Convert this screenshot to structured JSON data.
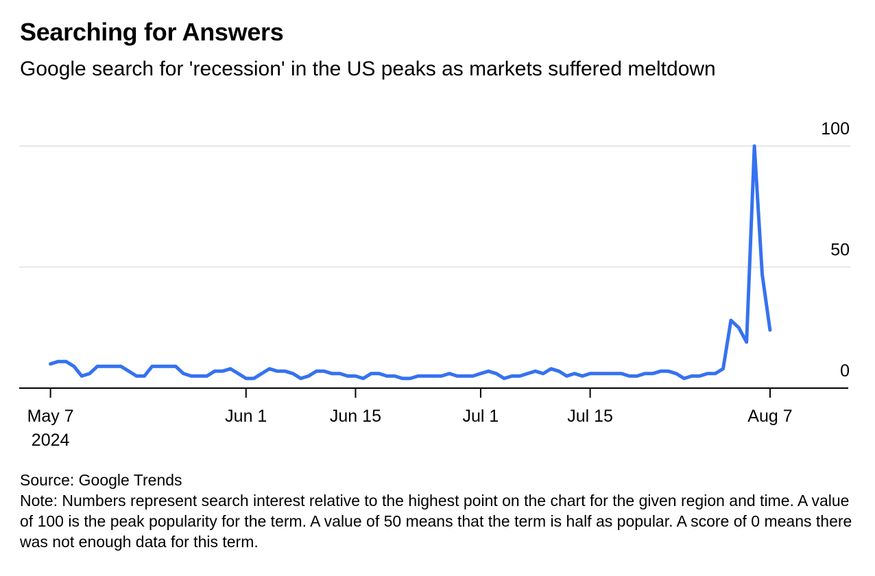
{
  "title": "Searching for Answers",
  "subtitle": "Google search for 'recession' in the US peaks as markets suffered meltdown",
  "source": "Source: Google Trends",
  "note": "Note: Numbers represent search interest relative to the highest point on the chart for the given region and time. A value of 100 is the peak popularity for the term. A value of 50 means that the term is half as popular. A score of 0 means there was not enough data for this term.",
  "colors": {
    "line": "#3572f0",
    "grid": "#e6e6e6",
    "axis": "#000000"
  },
  "chart_data": {
    "type": "line",
    "x_axis": "date",
    "xlim": [
      "2024-05-03",
      "2024-08-17"
    ],
    "ylim": [
      0,
      100
    ],
    "grid": true,
    "y_ticks": [
      {
        "value": 0,
        "label": "0"
      },
      {
        "value": 50,
        "label": "50"
      },
      {
        "value": 100,
        "label": "100"
      }
    ],
    "x_ticks": [
      {
        "date": "2024-05-07",
        "label": "May 7",
        "sublabel": "2024"
      },
      {
        "date": "2024-06-01",
        "label": "Jun 1"
      },
      {
        "date": "2024-06-15",
        "label": "Jun 15"
      },
      {
        "date": "2024-07-01",
        "label": "Jul 1"
      },
      {
        "date": "2024-07-15",
        "label": "Jul 15"
      },
      {
        "date": "2024-08-07",
        "label": "Aug 7"
      }
    ],
    "series": [
      {
        "x": [
          "2024-05-07",
          "2024-05-08",
          "2024-05-09",
          "2024-05-10",
          "2024-05-11",
          "2024-05-12",
          "2024-05-13",
          "2024-05-14",
          "2024-05-15",
          "2024-05-16",
          "2024-05-17",
          "2024-05-18",
          "2024-05-19",
          "2024-05-20",
          "2024-05-21",
          "2024-05-22",
          "2024-05-23",
          "2024-05-24",
          "2024-05-25",
          "2024-05-26",
          "2024-05-27",
          "2024-05-28",
          "2024-05-29",
          "2024-05-30",
          "2024-05-31",
          "2024-06-01",
          "2024-06-02",
          "2024-06-03",
          "2024-06-04",
          "2024-06-05",
          "2024-06-06",
          "2024-06-07",
          "2024-06-08",
          "2024-06-09",
          "2024-06-10",
          "2024-06-11",
          "2024-06-12",
          "2024-06-13",
          "2024-06-14",
          "2024-06-15",
          "2024-06-16",
          "2024-06-17",
          "2024-06-18",
          "2024-06-19",
          "2024-06-20",
          "2024-06-21",
          "2024-06-22",
          "2024-06-23",
          "2024-06-24",
          "2024-06-25",
          "2024-06-26",
          "2024-06-27",
          "2024-06-28",
          "2024-06-29",
          "2024-06-30",
          "2024-07-01",
          "2024-07-02",
          "2024-07-03",
          "2024-07-04",
          "2024-07-05",
          "2024-07-06",
          "2024-07-07",
          "2024-07-08",
          "2024-07-09",
          "2024-07-10",
          "2024-07-11",
          "2024-07-12",
          "2024-07-13",
          "2024-07-14",
          "2024-07-15",
          "2024-07-16",
          "2024-07-17",
          "2024-07-18",
          "2024-07-19",
          "2024-07-20",
          "2024-07-21",
          "2024-07-22",
          "2024-07-23",
          "2024-07-24",
          "2024-07-25",
          "2024-07-26",
          "2024-07-27",
          "2024-07-28",
          "2024-07-29",
          "2024-07-30",
          "2024-07-31",
          "2024-08-01",
          "2024-08-02",
          "2024-08-03",
          "2024-08-04",
          "2024-08-05",
          "2024-08-06",
          "2024-08-07"
        ],
        "y": [
          10,
          11,
          11,
          9,
          5,
          6,
          9,
          9,
          9,
          9,
          7,
          5,
          5,
          9,
          9,
          9,
          9,
          6,
          5,
          5,
          5,
          7,
          7,
          8,
          6,
          4,
          4,
          6,
          8,
          7,
          7,
          6,
          4,
          5,
          7,
          7,
          6,
          6,
          5,
          5,
          4,
          6,
          6,
          5,
          5,
          4,
          4,
          5,
          5,
          5,
          5,
          6,
          5,
          5,
          5,
          6,
          7,
          6,
          4,
          5,
          5,
          6,
          7,
          6,
          8,
          7,
          5,
          6,
          5,
          6,
          6,
          6,
          6,
          6,
          5,
          5,
          6,
          6,
          7,
          7,
          6,
          4,
          5,
          5,
          6,
          6,
          8,
          28,
          25,
          19,
          100,
          47,
          24
        ]
      }
    ]
  }
}
